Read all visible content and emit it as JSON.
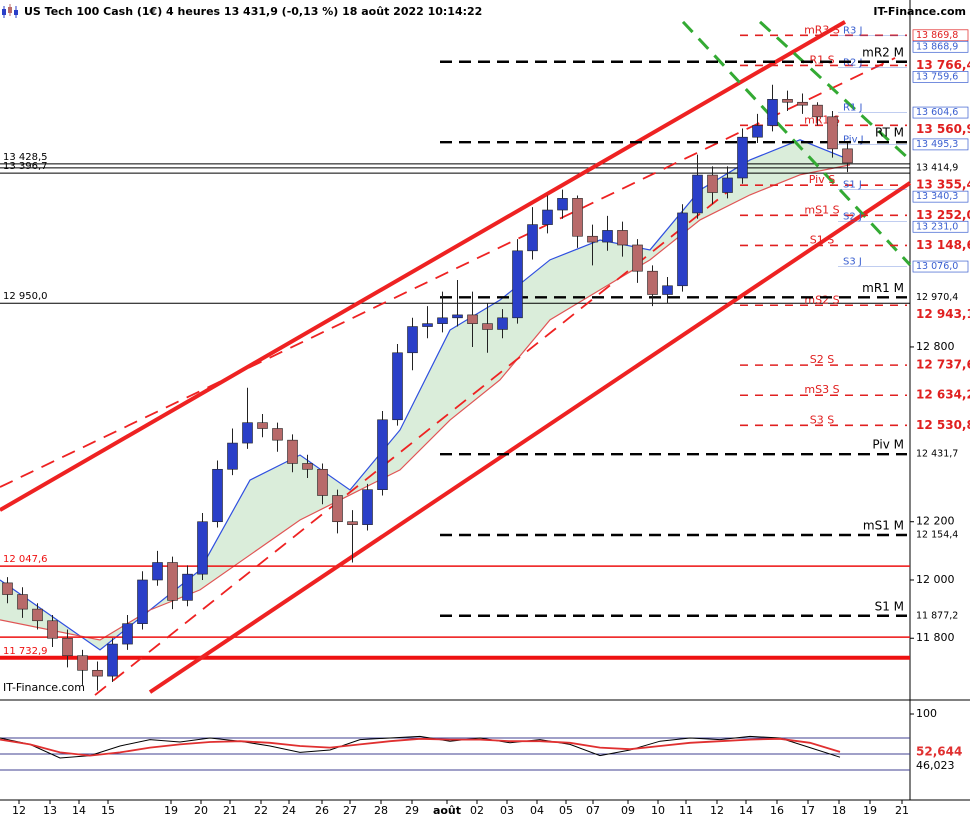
{
  "header": {
    "title": "US Tech 100 Cash (1€) 4 heures 13 431,9 (-0,13 %) 18 août 2022 10:14:22",
    "brand": "IT-Finance.com",
    "watermark": "IT-Finance.com"
  },
  "chart_data": [
    {
      "type": "candlestick",
      "xlim": [
        0,
        182
      ],
      "ylim": [
        11588,
        13991
      ],
      "yticks": [
        {
          "value": 12800,
          "label": "12 800"
        },
        {
          "value": 12200,
          "label": "12 200"
        },
        {
          "value": 12000,
          "label": "12 000"
        },
        {
          "value": 11800,
          "label": "11 800"
        }
      ],
      "xticks": [
        {
          "value": 3.8,
          "label": "12"
        },
        {
          "value": 10,
          "label": "13"
        },
        {
          "value": 15.8,
          "label": "14"
        },
        {
          "value": 21.6,
          "label": "15"
        },
        {
          "value": 34.2,
          "label": "19"
        },
        {
          "value": 40.2,
          "label": "20"
        },
        {
          "value": 46,
          "label": "21"
        },
        {
          "value": 52.2,
          "label": "22"
        },
        {
          "value": 57.8,
          "label": "24"
        },
        {
          "value": 64.4,
          "label": "26"
        },
        {
          "value": 70,
          "label": "27"
        },
        {
          "value": 76.2,
          "label": "28"
        },
        {
          "value": 82.4,
          "label": "29"
        },
        {
          "value": 89.4,
          "label": "août"
        },
        {
          "value": 95.4,
          "label": "02"
        },
        {
          "value": 101.4,
          "label": "03"
        },
        {
          "value": 107.4,
          "label": "04"
        },
        {
          "value": 113.2,
          "label": "05"
        },
        {
          "value": 118.6,
          "label": "07"
        },
        {
          "value": 125.6,
          "label": "09"
        },
        {
          "value": 131.6,
          "label": "10"
        },
        {
          "value": 137.2,
          "label": "11"
        },
        {
          "value": 143.4,
          "label": "12"
        },
        {
          "value": 149.2,
          "label": "14"
        },
        {
          "value": 155.4,
          "label": "16"
        },
        {
          "value": 161.6,
          "label": "17"
        },
        {
          "value": 167.8,
          "label": "18"
        },
        {
          "value": 174,
          "label": "19"
        },
        {
          "value": 180.4,
          "label": "21"
        }
      ],
      "up_color": "#2a3fc8",
      "down_color": "#b86a6a",
      "x": [
        1.5,
        4.5,
        7.5,
        10.5,
        13.5,
        16.5,
        19.5,
        22.5,
        25.5,
        28.5,
        31.5,
        34.5,
        37.5,
        40.5,
        43.5,
        46.5,
        49.5,
        52.5,
        55.5,
        58.5,
        61.5,
        64.5,
        67.5,
        70.5,
        73.5,
        76.5,
        79.5,
        82.5,
        85.5,
        88.5,
        91.5,
        94.5,
        97.5,
        100.5,
        103.5,
        106.5,
        109.5,
        112.5,
        115.5,
        118.5,
        121.5,
        124.5,
        127.5,
        130.5,
        133.5,
        136.5,
        139.5,
        142.5,
        145.5,
        148.5,
        151.5,
        154.5,
        157.5,
        160.5,
        163.5,
        166.5,
        169.5
      ],
      "candles": [
        [
          11990,
          12010,
          11920,
          11950
        ],
        [
          11950,
          11975,
          11870,
          11900
        ],
        [
          11900,
          11920,
          11830,
          11860
        ],
        [
          11860,
          11880,
          11770,
          11800
        ],
        [
          11800,
          11830,
          11700,
          11740
        ],
        [
          11740,
          11760,
          11640,
          11690
        ],
        [
          11690,
          11720,
          11620,
          11670
        ],
        [
          11670,
          11800,
          11650,
          11780
        ],
        [
          11780,
          11880,
          11760,
          11850
        ],
        [
          11850,
          12030,
          11830,
          12000
        ],
        [
          12000,
          12100,
          11980,
          12060
        ],
        [
          12060,
          12080,
          11900,
          11930
        ],
        [
          11930,
          12050,
          11910,
          12020
        ],
        [
          12020,
          12230,
          12000,
          12200
        ],
        [
          12200,
          12410,
          12180,
          12380
        ],
        [
          12380,
          12520,
          12360,
          12470
        ],
        [
          12470,
          12660,
          12450,
          12540
        ],
        [
          12540,
          12570,
          12490,
          12520
        ],
        [
          12520,
          12540,
          12440,
          12480
        ],
        [
          12480,
          12500,
          12370,
          12400
        ],
        [
          12400,
          12430,
          12350,
          12380
        ],
        [
          12380,
          12400,
          12260,
          12290
        ],
        [
          12290,
          12310,
          12160,
          12200
        ],
        [
          12200,
          12240,
          12060,
          12190
        ],
        [
          12190,
          12330,
          12170,
          12310
        ],
        [
          12310,
          12580,
          12290,
          12550
        ],
        [
          12550,
          12810,
          12530,
          12780
        ],
        [
          12780,
          12900,
          12720,
          12870
        ],
        [
          12870,
          12940,
          12830,
          12880
        ],
        [
          12880,
          12990,
          12850,
          12900
        ],
        [
          12900,
          13030,
          12870,
          12910
        ],
        [
          12910,
          12990,
          12800,
          12880
        ],
        [
          12880,
          12950,
          12780,
          12860
        ],
        [
          12860,
          12930,
          12830,
          12900
        ],
        [
          12900,
          13170,
          12880,
          13130
        ],
        [
          13130,
          13280,
          13100,
          13220
        ],
        [
          13220,
          13320,
          13190,
          13270
        ],
        [
          13270,
          13340,
          13240,
          13310
        ],
        [
          13310,
          13320,
          13140,
          13180
        ],
        [
          13180,
          13220,
          13080,
          13160
        ],
        [
          13160,
          13250,
          13130,
          13200
        ],
        [
          13200,
          13230,
          13110,
          13150
        ],
        [
          13150,
          13170,
          13020,
          13060
        ],
        [
          13060,
          13080,
          12940,
          12980
        ],
        [
          12980,
          13040,
          12950,
          13010
        ],
        [
          13010,
          13290,
          12990,
          13260
        ],
        [
          13260,
          13460,
          13240,
          13390
        ],
        [
          13390,
          13420,
          13290,
          13330
        ],
        [
          13330,
          13420,
          13310,
          13380
        ],
        [
          13380,
          13550,
          13360,
          13520
        ],
        [
          13520,
          13600,
          13500,
          13560
        ],
        [
          13560,
          13700,
          13540,
          13650
        ],
        [
          13650,
          13680,
          13610,
          13640
        ],
        [
          13640,
          13670,
          13600,
          13630
        ],
        [
          13630,
          13640,
          13560,
          13590
        ],
        [
          13590,
          13610,
          13450,
          13480
        ],
        [
          13480,
          13500,
          13400,
          13431.9
        ]
      ],
      "average_x": [
        0,
        20,
        30,
        40,
        50,
        60,
        70,
        80,
        90,
        100,
        110,
        120,
        130,
        140,
        150,
        160,
        170
      ],
      "averages": [
        {
          "color": "#2f4fe0",
          "values": [
            12000,
            11760,
            11897,
            12034,
            12343,
            12429,
            12309,
            12515,
            12858,
            12961,
            13099,
            13167,
            13133,
            13339,
            13442,
            13511,
            13442
          ]
        },
        {
          "color": "#e05555",
          "values": [
            11863,
            11794,
            11897,
            11966,
            12086,
            12206,
            12292,
            12378,
            12549,
            12687,
            12893,
            12996,
            13099,
            13236,
            13322,
            13391,
            13425
          ]
        }
      ],
      "band_fill": "#d3ead3",
      "trendlines": [
        {
          "color": "#ee2222",
          "width": 4,
          "dashed": false,
          "x": [
            0,
            169
          ],
          "y": [
            12240,
            13916
          ]
        },
        {
          "color": "#ee2222",
          "width": 4,
          "dashed": false,
          "x": [
            30,
            182
          ],
          "y": [
            11615,
            13363
          ]
        },
        {
          "color": "#ee2222",
          "width": 1.8,
          "dashed": true,
          "x": [
            0,
            179
          ],
          "y": [
            12319,
            13792
          ]
        },
        {
          "color": "#ee2222",
          "width": 1.8,
          "dashed": true,
          "x": [
            19,
            146
          ],
          "y": [
            11605,
            13339
          ]
        },
        {
          "color": "#33aa33",
          "width": 3,
          "dashed": true,
          "x": [
            136.6,
            182
          ],
          "y": [
            13916,
            13082
          ]
        },
        {
          "color": "#33aa33",
          "width": 3,
          "dashed": true,
          "x": [
            152,
            182
          ],
          "y": [
            13916,
            13442
          ]
        }
      ],
      "levels": [
        {
          "group": "weekly",
          "name": "mR3 S",
          "value": 13869.8,
          "price_label": "13 869,8",
          "color": "#e02020",
          "bold": false
        },
        {
          "group": "weekly",
          "name": "R1 S",
          "value": 13766.4,
          "price_label": "13 766,4",
          "color": "#e02020",
          "bold": true
        },
        {
          "group": "weekly",
          "name": "mR1 S",
          "value": 13560.9,
          "price_label": "13 560,9",
          "color": "#e02020",
          "bold": true
        },
        {
          "group": "weekly",
          "name": "Piv S",
          "value": 13355.4,
          "price_label": "13 355,4",
          "color": "#e02020",
          "bold": true
        },
        {
          "group": "weekly",
          "name": "mS1 S",
          "value": 13252.0,
          "price_label": "13 252,0",
          "color": "#e02020",
          "bold": true
        },
        {
          "group": "weekly",
          "name": "S1 S",
          "value": 13148.6,
          "price_label": "13 148,6",
          "color": "#e02020",
          "bold": true
        },
        {
          "group": "weekly",
          "name": "mS2 S",
          "value": 12943.1,
          "price_label": "12 943,1",
          "color": "#e02020",
          "bold": true
        },
        {
          "group": "weekly",
          "name": "S2 S",
          "value": 12737.6,
          "price_label": "12 737,6",
          "color": "#e02020",
          "bold": true
        },
        {
          "group": "weekly",
          "name": "mS3 S",
          "value": 12634.2,
          "price_label": "12 634,2",
          "color": "#e02020",
          "bold": true
        },
        {
          "group": "weekly",
          "name": "S3 S",
          "value": 12530.8,
          "price_label": "12 530,8",
          "color": "#e02020",
          "bold": true
        },
        {
          "group": "daily",
          "name": "R3 J",
          "value": 13868.9,
          "price_label": "13 868,9",
          "color": "#3a5fd0",
          "bold": false
        },
        {
          "group": "daily",
          "name": "R2 J",
          "value": 13759.6,
          "price_label": "13 759,6",
          "color": "#3a5fd0",
          "bold": false
        },
        {
          "group": "daily",
          "name": "R1 J",
          "value": 13604.6,
          "price_label": "13 604,6",
          "color": "#3a5fd0",
          "bold": false
        },
        {
          "group": "daily",
          "name": "Piv J",
          "value": 13495.3,
          "price_label": "13 495,3",
          "color": "#3a5fd0",
          "bold": false
        },
        {
          "group": "daily",
          "name": "S1 J",
          "value": 13340.3,
          "price_label": "13 340,3",
          "color": "#3a5fd0",
          "bold": false
        },
        {
          "group": "daily",
          "name": "S2 J",
          "value": 13231.0,
          "price_label": "13 231,0",
          "color": "#3a5fd0",
          "bold": false
        },
        {
          "group": "daily",
          "name": "S3 J",
          "value": 13076.0,
          "price_label": "13 076,0",
          "color": "#3a5fd0",
          "bold": false
        },
        {
          "group": "monthly",
          "name": "mR2 M",
          "value": 13779,
          "color": "#000000",
          "bold": false
        },
        {
          "group": "monthly",
          "name": "RT M",
          "value": 13503,
          "color": "#000000",
          "bold": false
        },
        {
          "group": "monthly",
          "name": "mR1 M",
          "value": 12970.4,
          "price_label": "12 970,4",
          "color": "#000000",
          "bold": false
        },
        {
          "group": "monthly",
          "name": "Piv M",
          "value": 12431.7,
          "price_label": "12 431,7",
          "color": "#000000",
          "bold": false
        },
        {
          "group": "monthly",
          "name": "mS1 M",
          "value": 12154.4,
          "price_label": "12 154,4",
          "color": "#000000",
          "bold": false
        },
        {
          "group": "monthly",
          "name": "S1 M",
          "value": 11877.2,
          "price_label": "11 877,2",
          "color": "#000000",
          "bold": false
        }
      ],
      "lines": [
        {
          "value": 13428.5,
          "label": "13 428,5",
          "color": "#000000",
          "width": 1
        },
        {
          "value": 13396.7,
          "label": "13 396,7",
          "color": "#000000",
          "width": 1
        },
        {
          "value": 13414.9,
          "price_label": "13 414,9",
          "color": "#000000",
          "width": 1
        },
        {
          "value": 12950.0,
          "label": "12 950,0",
          "color": "#000000",
          "width": 1
        },
        {
          "value": 12047.6,
          "label": "12 047,6",
          "color": "#ee1111",
          "width": 1.5
        },
        {
          "value": 11804,
          "color": "#ee1111",
          "width": 1.5
        },
        {
          "value": 11732.9,
          "label": "11 732,9",
          "color": "#ee1111",
          "width": 4
        }
      ]
    },
    {
      "type": "line",
      "ylim": [
        -7.5,
        117.5
      ],
      "yticks": [
        100
      ],
      "bands": [
        70,
        50,
        30
      ],
      "band_color": "#404090",
      "x": [
        0,
        6,
        12,
        18,
        24,
        30,
        36,
        42,
        48,
        54,
        60,
        66,
        72,
        78,
        84,
        90,
        96,
        102,
        108,
        114,
        120,
        126,
        132,
        138,
        144,
        150,
        156,
        162,
        168
      ],
      "series": [
        {
          "color": "#000000",
          "values": [
            70,
            62,
            45,
            48,
            60,
            68,
            65,
            70,
            66,
            60,
            52,
            55,
            68,
            70,
            72,
            66,
            70,
            64,
            68,
            62,
            48,
            55,
            66,
            70,
            68,
            72,
            70,
            58,
            46.023
          ],
          "value_labels": [
            null,
            null,
            null,
            null,
            null,
            null,
            null,
            null,
            null,
            null,
            null,
            null,
            null,
            null,
            null,
            null,
            null,
            null,
            null,
            null,
            null,
            null,
            null,
            null,
            null,
            null,
            null,
            null,
            "46,023"
          ]
        },
        {
          "color": "#e03030",
          "values": [
            68,
            62,
            52,
            48,
            52,
            58,
            62,
            65,
            66,
            64,
            60,
            58,
            62,
            66,
            69,
            68,
            68,
            66,
            66,
            64,
            58,
            56,
            60,
            64,
            66,
            68,
            69,
            64,
            52.644
          ],
          "value_labels": [
            null,
            null,
            null,
            null,
            null,
            null,
            null,
            null,
            null,
            null,
            null,
            null,
            null,
            null,
            null,
            null,
            null,
            null,
            null,
            null,
            null,
            null,
            null,
            null,
            null,
            null,
            null,
            null,
            "52,644"
          ]
        }
      ]
    }
  ]
}
